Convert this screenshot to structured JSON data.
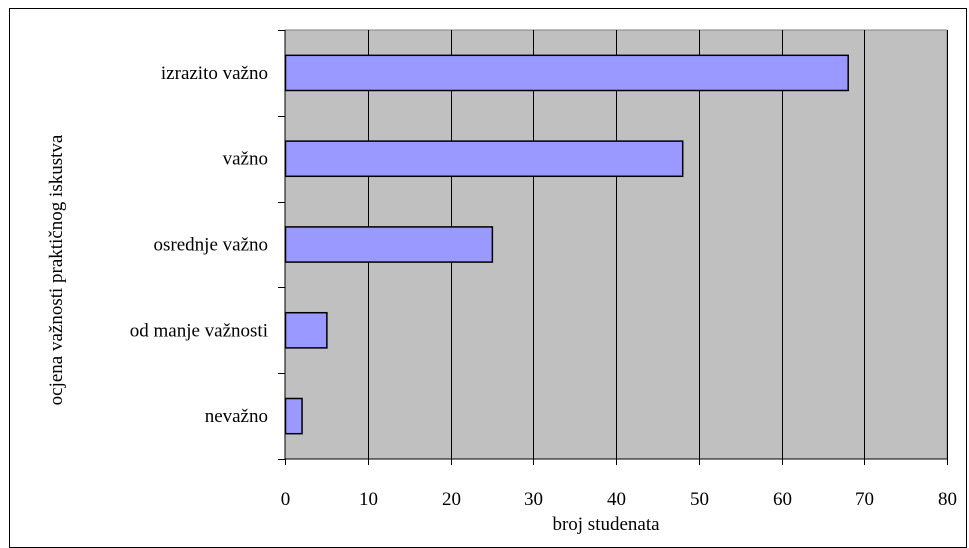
{
  "chart_data": {
    "type": "bar",
    "orientation": "horizontal",
    "categories": [
      "nevažno",
      "od manje važnosti",
      "osrednje važno",
      "važno",
      "izrazito važno"
    ],
    "values": [
      2,
      5,
      25,
      48,
      68
    ],
    "xlabel": "broj studenata",
    "ylabel": "ocjena važnosti praktičnog iskustva",
    "xlim": [
      0,
      80
    ],
    "xticks": [
      0,
      10,
      20,
      30,
      40,
      50,
      60,
      70,
      80
    ],
    "grid": true,
    "legend": "none",
    "colors": {
      "bar_fill": "#9999ff",
      "bar_stroke": "#000000",
      "plot_background": "#c0c0c0",
      "gridline": "#000000"
    }
  }
}
